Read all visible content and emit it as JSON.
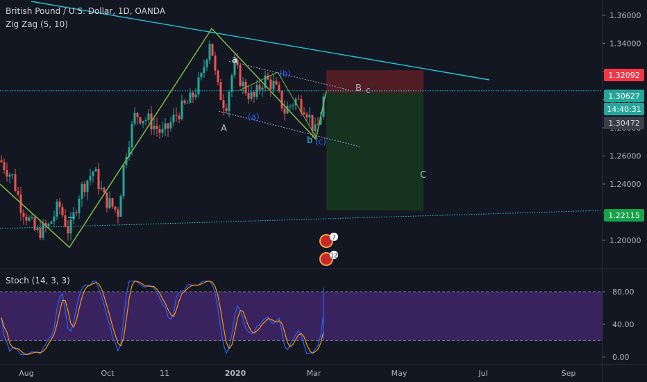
{
  "header": {
    "symbol_title": "British Pound / U.S. Dollar, 1D, OANDA",
    "indicator_zigzag": "Zig Zag (5, 10)",
    "indicator_stoch": "Stoch (14, 3, 3)"
  },
  "colors": {
    "background": "#131722",
    "up_candle": "#26a69a",
    "down_candle": "#ef5350",
    "zigzag": "#7cb342",
    "trendline": "#26c6da",
    "stop_zone": "#5d1f24",
    "target_zone": "#16361f",
    "stoch_k": "#2962ff",
    "stoch_d": "#ff9800",
    "stoch_band": "#4a2a78",
    "wave_labels": "#2962ff"
  },
  "chart_data": [
    {
      "type": "candlestick",
      "title": "British Pound / U.S. Dollar, 1D, OANDA",
      "x_ticks": [
        "Aug",
        "Oct",
        "11",
        "2020",
        "Mar",
        "May",
        "Jul",
        "Sep"
      ],
      "y_ticks": [
        "1.36000",
        "1.34000",
        "1.32000",
        "1.30000",
        "1.28000",
        "1.26000",
        "1.24000",
        "1.22000",
        "1.20000"
      ],
      "ylim": [
        1.184,
        1.37
      ],
      "price_badges": [
        {
          "value": "1.32092",
          "color": "#f23645",
          "text_color": "#ffffff"
        },
        {
          "value": "1.30627",
          "color": "#26a69a",
          "text_color": "#ffffff"
        },
        {
          "value": "14:40:31",
          "color": "#26a69a",
          "text_color": "#ffffff"
        },
        {
          "value": "1.30472",
          "color": "#3a3e48",
          "text_color": "#d1d4dc"
        },
        {
          "value": "1.22115",
          "color": "#16a34a",
          "text_color": "#ffffff"
        }
      ],
      "last_price": 1.30627,
      "zigzag_points": [
        [
          0,
          1.24
        ],
        [
          100,
          1.195
        ],
        [
          305,
          1.3505
        ],
        [
          455,
          1.272
        ],
        [
          470,
          1.306
        ]
      ],
      "waves": {
        "white_labels": [
          "a",
          "A",
          "b",
          "c",
          "B",
          "C"
        ],
        "blue_labels": [
          "(a)",
          "(b)",
          "(c)"
        ]
      },
      "position": {
        "entry": 1.30472,
        "stop": 1.32092,
        "target": 1.22115
      }
    },
    {
      "type": "line",
      "title": "Stoch (14, 3, 3)",
      "y_ticks": [
        "80.00",
        "40.00",
        "0.00"
      ],
      "ylim": [
        -5,
        100
      ],
      "bands": [
        20,
        80
      ]
    }
  ]
}
